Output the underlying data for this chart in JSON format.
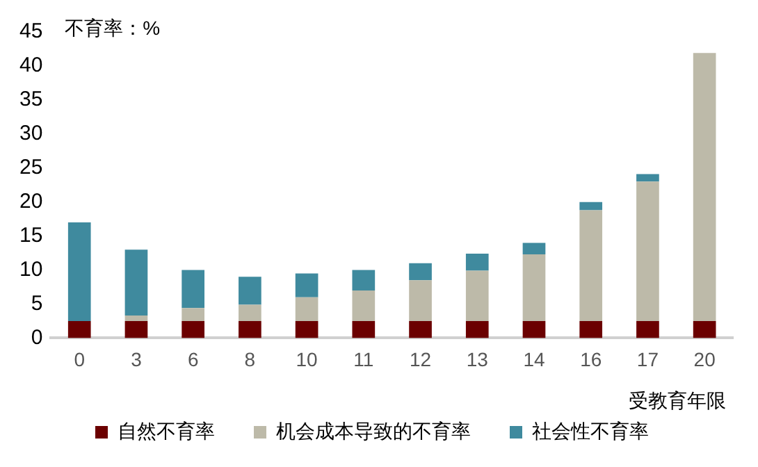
{
  "chart_data": {
    "type": "bar",
    "stacked": true,
    "ylabel": "不育率：%",
    "xlabel": "受教育年限",
    "categories": [
      "0",
      "3",
      "6",
      "8",
      "10",
      "11",
      "12",
      "13",
      "14",
      "16",
      "17",
      "20"
    ],
    "series": [
      {
        "name": "自然不育率",
        "color": "#6b0000",
        "values": [
          2.5,
          2.5,
          2.5,
          2.5,
          2.5,
          2.5,
          2.5,
          2.5,
          2.5,
          2.5,
          2.5,
          2.5
        ]
      },
      {
        "name": "机会成本导致的不育率",
        "color": "#bdbaa9",
        "values": [
          0,
          0.8,
          1.9,
          2.4,
          3.5,
          4.5,
          6,
          7.4,
          9.8,
          16.3,
          20.5,
          39.4
        ]
      },
      {
        "name": "社会性不育率",
        "color": "#3f8a9e",
        "values": [
          14.5,
          9.7,
          5.6,
          4.1,
          3.5,
          3,
          2.5,
          2.5,
          1.7,
          1.2,
          1.1,
          0
        ]
      }
    ],
    "ylim": [
      0,
      45
    ],
    "yticks": [
      0,
      5,
      10,
      15,
      20,
      25,
      30,
      35,
      40,
      45
    ],
    "grid": false,
    "legend": "bottom"
  }
}
